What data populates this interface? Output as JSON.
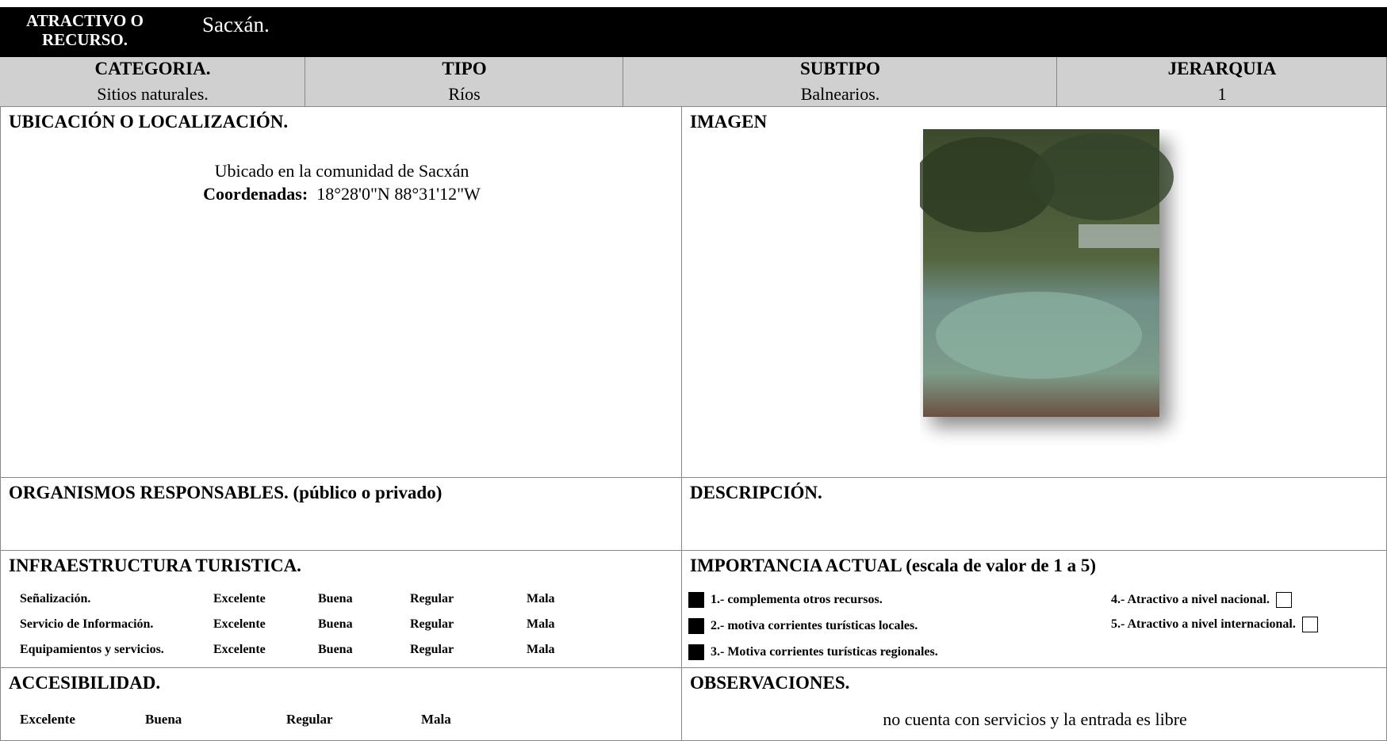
{
  "header": {
    "label": "ATRACTIVO O RECURSO.",
    "name": "Sacxán."
  },
  "classification": {
    "headers": [
      "CATEGORIA.",
      "TIPO",
      "SUBTIPO",
      "JERARQUIA"
    ],
    "values": [
      "Sitios naturales.",
      "Ríos",
      "Balnearios.",
      "1"
    ]
  },
  "location": {
    "title": "UBICACIÓN O LOCALIZACIÓN.",
    "text": "Ubicado en la comunidad de Sacxán",
    "coords_label": "Coordenadas:",
    "coords": "18°28'0\"N 88°31'12\"W"
  },
  "image": {
    "title": "IMAGEN"
  },
  "organisms": {
    "title": "ORGANISMOS RESPONSABLES. (público o privado)"
  },
  "description": {
    "title": "DESCRIPCIÓN."
  },
  "infrastructure": {
    "title": "INFRAESTRUCTURA TURISTICA.",
    "rows": [
      {
        "label": "Señalización.",
        "options": [
          "Excelente",
          "Buena",
          "Regular",
          "Mala"
        ]
      },
      {
        "label": "Servicio de Información.",
        "options": [
          "Excelente",
          "Buena",
          "Regular",
          "Mala"
        ]
      },
      {
        "label": "Equipamientos y servicios.",
        "options": [
          "Excelente",
          "Buena",
          "Regular",
          "Mala"
        ]
      }
    ]
  },
  "importance": {
    "title": "IMPORTANCIA ACTUAL (escala de valor de 1 a 5)",
    "items": [
      {
        "text": "1.- complementa otros recursos.",
        "checked": true
      },
      {
        "text": "2.- motiva corrientes turísticas locales.",
        "checked": true
      },
      {
        "text": "3.- Motiva corrientes turísticas regionales.",
        "checked": true
      },
      {
        "text": "4.-  Atractivo a nivel nacional.",
        "checked": false
      },
      {
        "text": "5.- Atractivo a nivel   internacional.",
        "checked": false
      }
    ]
  },
  "accessibility": {
    "title": "ACCESIBILIDAD.",
    "options": [
      "Excelente",
      "Buena",
      "Regular",
      "Mala"
    ]
  },
  "observations": {
    "title": "OBSERVACIONES.",
    "text": "no cuenta con servicios y la entrada es libre"
  }
}
